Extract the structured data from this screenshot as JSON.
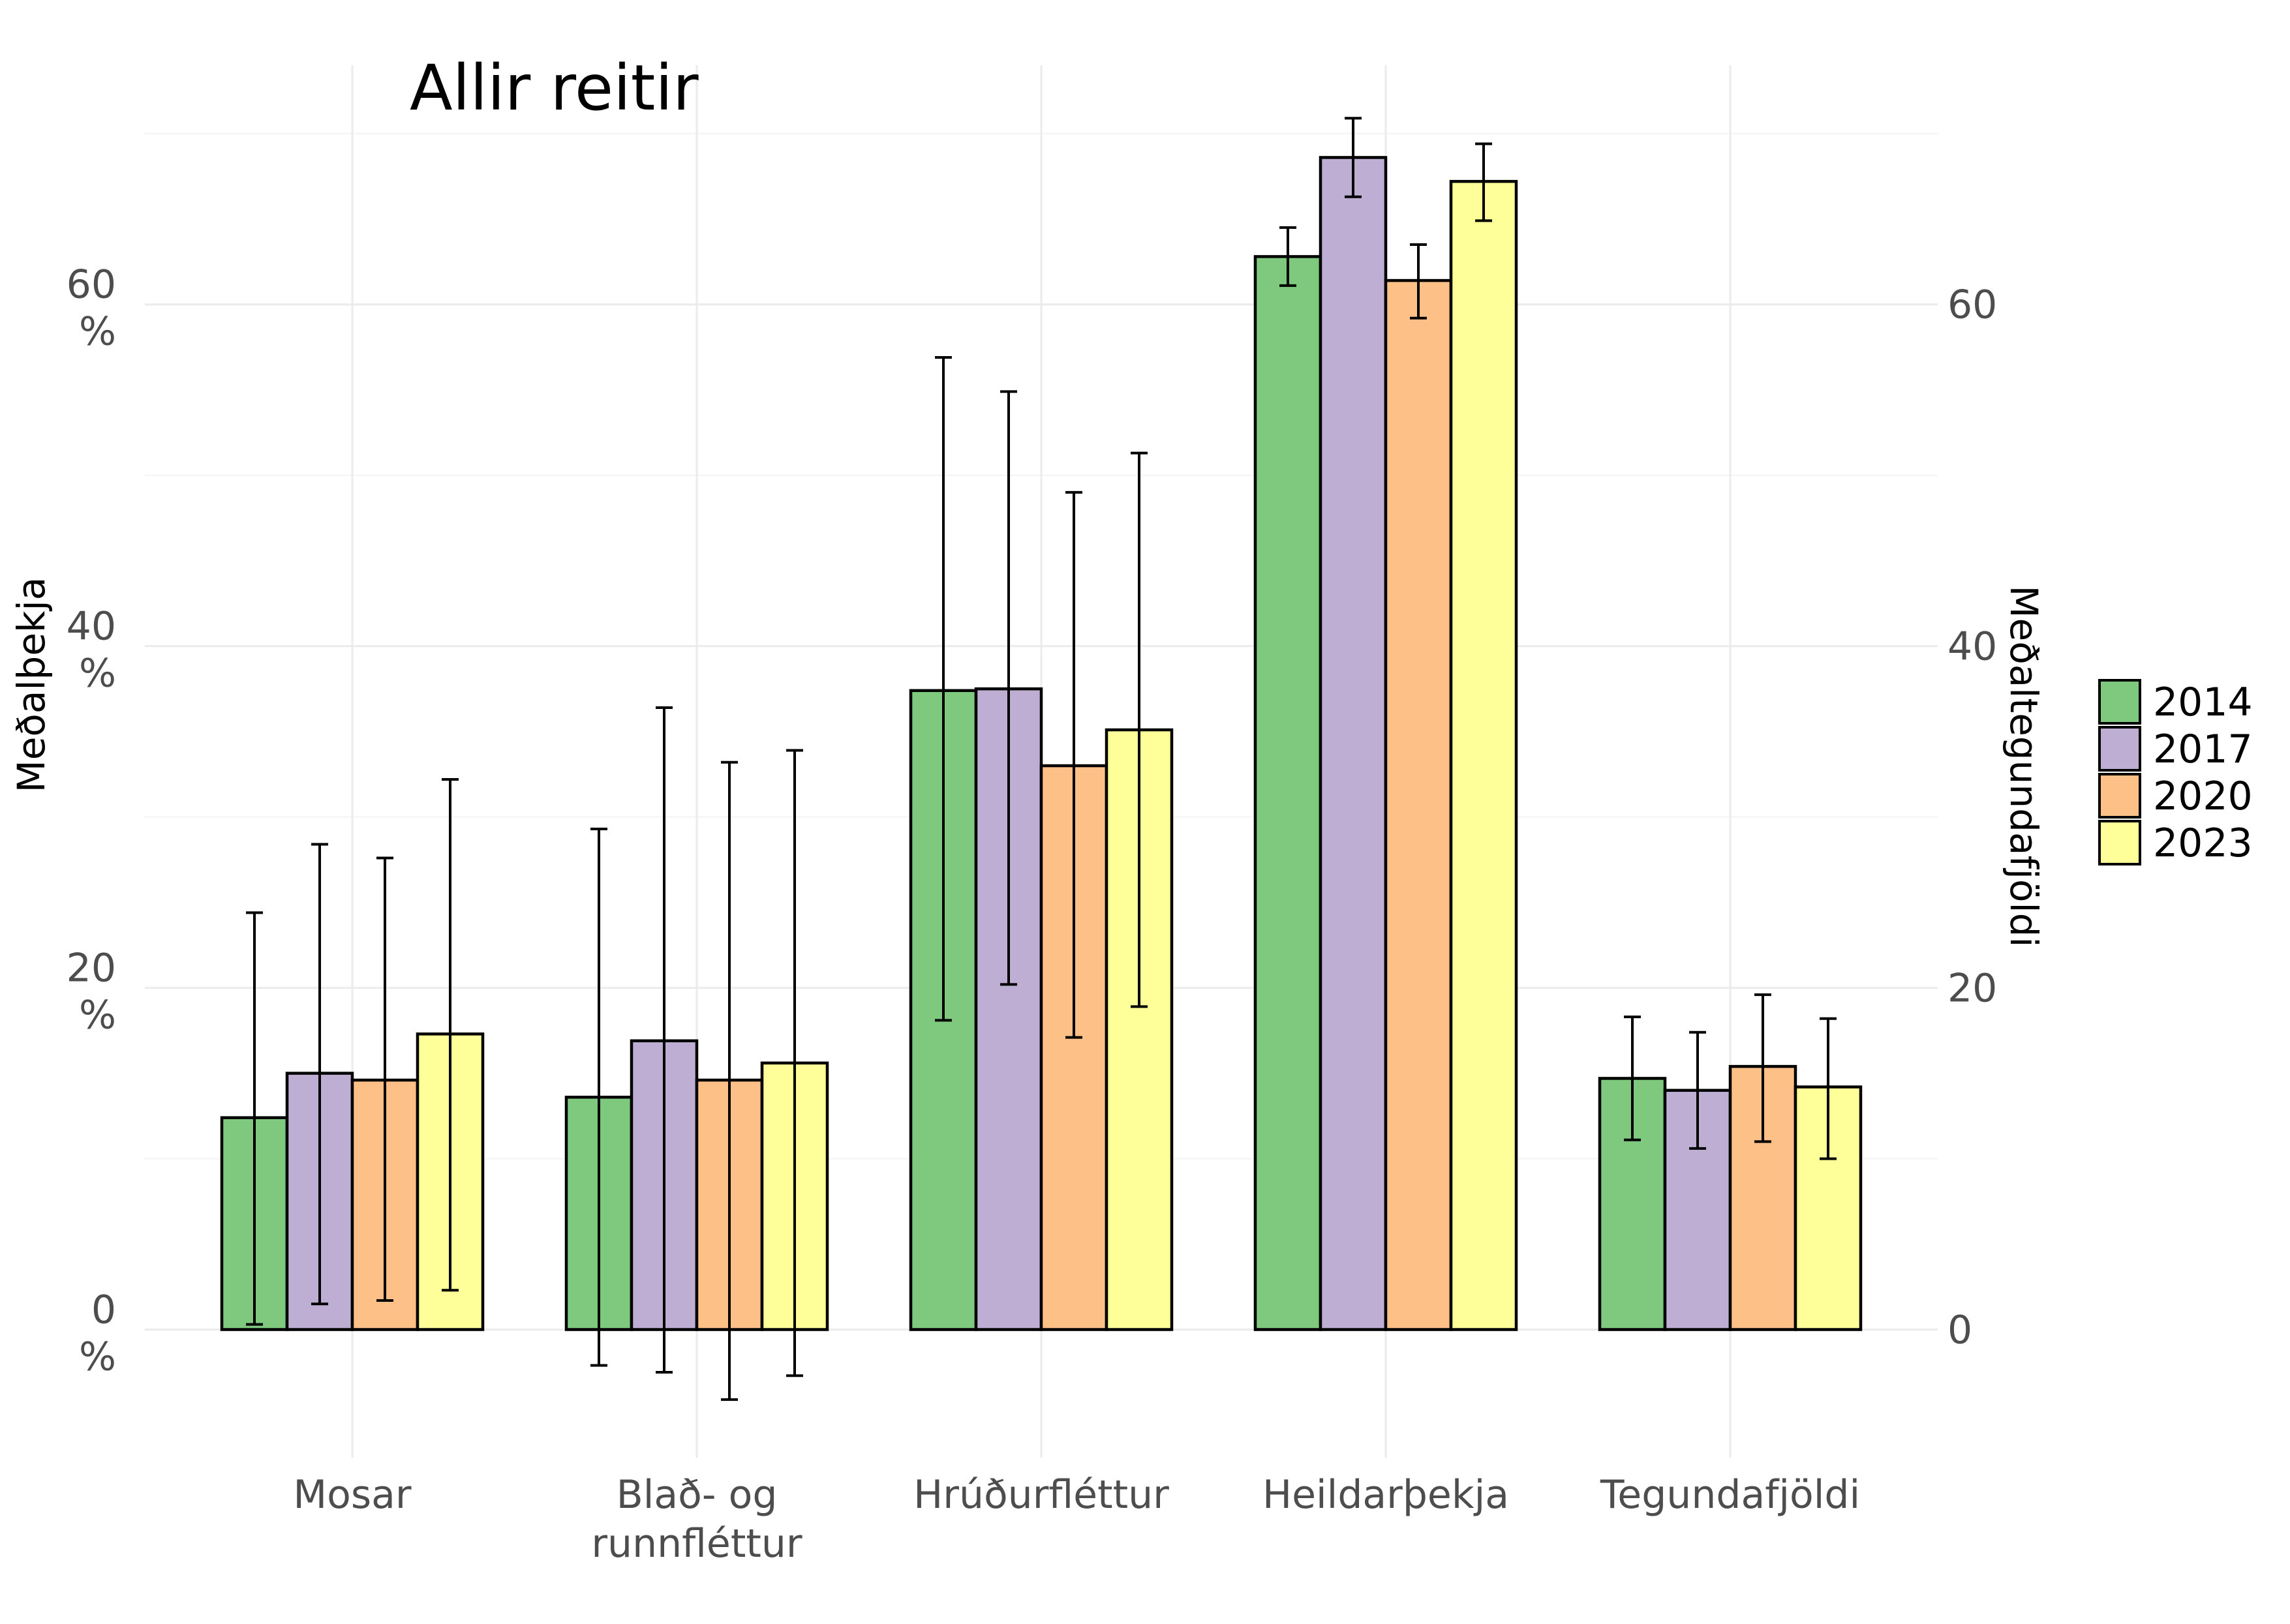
{
  "chart_data": {
    "type": "bar",
    "title": "Allir reitir",
    "ylabel_left": "Meðalþekja",
    "ylabel_right": "Meðaltegundafjöldi",
    "categories": [
      [
        "Mosar"
      ],
      [
        "Blað- og",
        "runnfléttur"
      ],
      [
        "Hrúðurfléttur"
      ],
      [
        "Heildarþekja"
      ],
      [
        "Tegundafjöldi"
      ]
    ],
    "ylim": [
      -7.5,
      74
    ],
    "left_ticks": [
      {
        "value": 0,
        "label": [
          "0",
          "%"
        ]
      },
      {
        "value": 20,
        "label": [
          "20",
          "%"
        ]
      },
      {
        "value": 40,
        "label": [
          "40",
          "%"
        ]
      },
      {
        "value": 60,
        "label": [
          "60",
          "%"
        ]
      }
    ],
    "right_ticks": [
      {
        "value": 0,
        "label": "0"
      },
      {
        "value": 20,
        "label": "20"
      },
      {
        "value": 40,
        "label": "40"
      },
      {
        "value": 60,
        "label": "60"
      }
    ],
    "grid": true,
    "legend_position": "right",
    "series": [
      {
        "name": "2014",
        "color": "#7fc97f",
        "values": [
          12.4,
          13.6,
          37.4,
          62.8,
          14.7
        ],
        "err_low": [
          0.3,
          -2.1,
          18.1,
          61.1,
          11.1
        ],
        "err_high": [
          24.4,
          29.3,
          56.9,
          64.5,
          18.3
        ]
      },
      {
        "name": "2017",
        "color": "#beaed4",
        "values": [
          15.0,
          16.9,
          37.5,
          68.6,
          14.0
        ],
        "err_low": [
          1.5,
          -2.5,
          20.2,
          66.3,
          10.6
        ],
        "err_high": [
          28.4,
          36.4,
          54.9,
          70.9,
          17.4
        ]
      },
      {
        "name": "2020",
        "color": "#fdc086",
        "values": [
          14.6,
          14.6,
          33.0,
          61.4,
          15.4
        ],
        "err_low": [
          1.7,
          -4.1,
          17.1,
          59.2,
          11.0
        ],
        "err_high": [
          27.6,
          33.2,
          49.0,
          63.5,
          19.6
        ]
      },
      {
        "name": "2023",
        "color": "#ffff99",
        "values": [
          17.3,
          15.6,
          35.1,
          67.2,
          14.2
        ],
        "err_low": [
          2.3,
          -2.7,
          18.9,
          64.9,
          10.0
        ],
        "err_high": [
          32.2,
          33.9,
          51.3,
          69.4,
          18.2
        ]
      }
    ]
  }
}
